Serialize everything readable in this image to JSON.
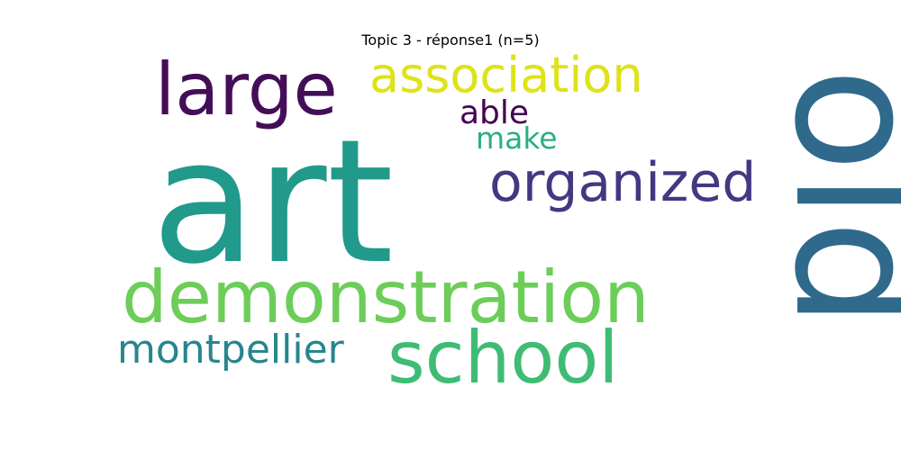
{
  "chart_data": {
    "type": "wordcloud",
    "title": "Topic 3 - réponse1 (n=5)",
    "words": [
      {
        "text": "art",
        "weight": 1.0,
        "color": "#21998b"
      },
      {
        "text": "old",
        "weight": 0.9,
        "color": "#2f6a8d"
      },
      {
        "text": "demonstration",
        "weight": 0.5,
        "color": "#6dcd59"
      },
      {
        "text": "school",
        "weight": 0.5,
        "color": "#3fbc73"
      },
      {
        "text": "large",
        "weight": 0.48,
        "color": "#440e57"
      },
      {
        "text": "organized",
        "weight": 0.38,
        "color": "#453781"
      },
      {
        "text": "association",
        "weight": 0.34,
        "color": "#dde318"
      },
      {
        "text": "montpellier",
        "weight": 0.28,
        "color": "#26868e"
      },
      {
        "text": "able",
        "weight": 0.22,
        "color": "#440154"
      },
      {
        "text": "make",
        "weight": 0.2,
        "color": "#2ab07f"
      }
    ]
  }
}
